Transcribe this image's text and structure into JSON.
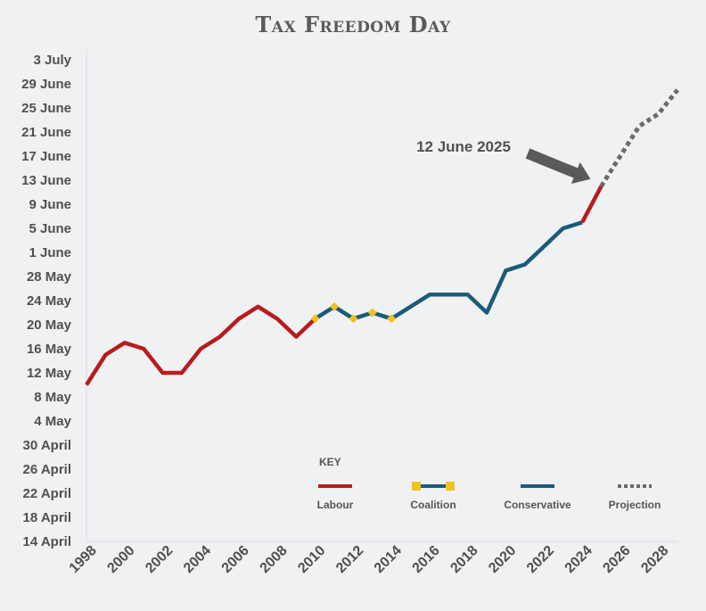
{
  "chart_data": {
    "type": "line",
    "title": "Tax Freedom Day",
    "x": [
      1998,
      1999,
      2000,
      2001,
      2002,
      2003,
      2004,
      2005,
      2006,
      2007,
      2008,
      2009,
      2010,
      2011,
      2012,
      2013,
      2014,
      2015,
      2016,
      2017,
      2018,
      2019,
      2020,
      2021,
      2022,
      2023,
      2024,
      2025,
      2026,
      2027,
      2028,
      2029
    ],
    "x_ticks": [
      "1998",
      "2000",
      "2002",
      "2004",
      "2006",
      "2008",
      "2010",
      "2012",
      "2014",
      "2016",
      "2018",
      "2020",
      "2022",
      "2024",
      "2026",
      "2028"
    ],
    "xlim": [
      1998,
      2029
    ],
    "y_unit": "calendar date",
    "y_ticks": [
      "14 April",
      "18 April",
      "22 April",
      "26 April",
      "30 April",
      "4 May",
      "8 May",
      "12 May",
      "16 May",
      "20 May",
      "24 May",
      "28 May",
      "1 June",
      "5 June",
      "9 June",
      "13 June",
      "17 June",
      "21 June",
      "25 June",
      "29 June",
      "3 July"
    ],
    "ylim": [
      "14 April",
      "3 July"
    ],
    "series": [
      {
        "name": "Labour",
        "color": "#b71c1c",
        "style": "solid",
        "points": [
          [
            1998,
            "10 May"
          ],
          [
            1999,
            "15 May"
          ],
          [
            2000,
            "17 May"
          ],
          [
            2001,
            "16 May"
          ],
          [
            2002,
            "12 May"
          ],
          [
            2003,
            "12 May"
          ],
          [
            2004,
            "16 May"
          ],
          [
            2005,
            "18 May"
          ],
          [
            2006,
            "21 May"
          ],
          [
            2007,
            "23 May"
          ],
          [
            2008,
            "21 May"
          ],
          [
            2009,
            "18 May"
          ],
          [
            2010,
            "21 May"
          ]
        ]
      },
      {
        "name": "Coalition",
        "color": "#1c5b78",
        "marker_color": "#f2c21b",
        "style": "solid-with-square-markers",
        "points": [
          [
            2010,
            "21 May"
          ],
          [
            2011,
            "23 May"
          ],
          [
            2012,
            "21 May"
          ],
          [
            2013,
            "22 May"
          ],
          [
            2014,
            "21 May"
          ]
        ]
      },
      {
        "name": "Conservative",
        "color": "#1c5b78",
        "style": "solid",
        "points": [
          [
            2014,
            "21 May"
          ],
          [
            2015,
            "23 May"
          ],
          [
            2016,
            "25 May"
          ],
          [
            2017,
            "25 May"
          ],
          [
            2018,
            "25 May"
          ],
          [
            2019,
            "22 May"
          ],
          [
            2020,
            "29 May"
          ],
          [
            2021,
            "30 May"
          ],
          [
            2022,
            "2 June"
          ],
          [
            2023,
            "5 June"
          ],
          [
            2024,
            "6 June"
          ]
        ]
      },
      {
        "name": "Labour",
        "color": "#b71c1c",
        "style": "solid",
        "points": [
          [
            2024,
            "6 June"
          ],
          [
            2025,
            "12 June"
          ]
        ]
      },
      {
        "name": "Projection",
        "color": "#6b6b6b",
        "style": "dotted",
        "points": [
          [
            2025,
            "12 June"
          ],
          [
            2026,
            "17 June"
          ],
          [
            2027,
            "22 June"
          ],
          [
            2028,
            "24 June"
          ],
          [
            2029,
            "28 June"
          ]
        ]
      }
    ],
    "annotation": {
      "text": "12 June 2025",
      "x": 2025,
      "y": "12 June"
    },
    "legend": {
      "title": "KEY",
      "placement": "bottom-right",
      "entries": [
        {
          "label": "Labour",
          "color": "#b71c1c",
          "style": "solid"
        },
        {
          "label": "Coalition",
          "color": "#1c5b78",
          "marker_color": "#f2c21b",
          "style": "solid-with-square-markers"
        },
        {
          "label": "Conservative",
          "color": "#1c5b78",
          "style": "solid"
        },
        {
          "label": "Projection",
          "color": "#6b6b6b",
          "style": "dotted"
        }
      ]
    },
    "grid": false
  }
}
